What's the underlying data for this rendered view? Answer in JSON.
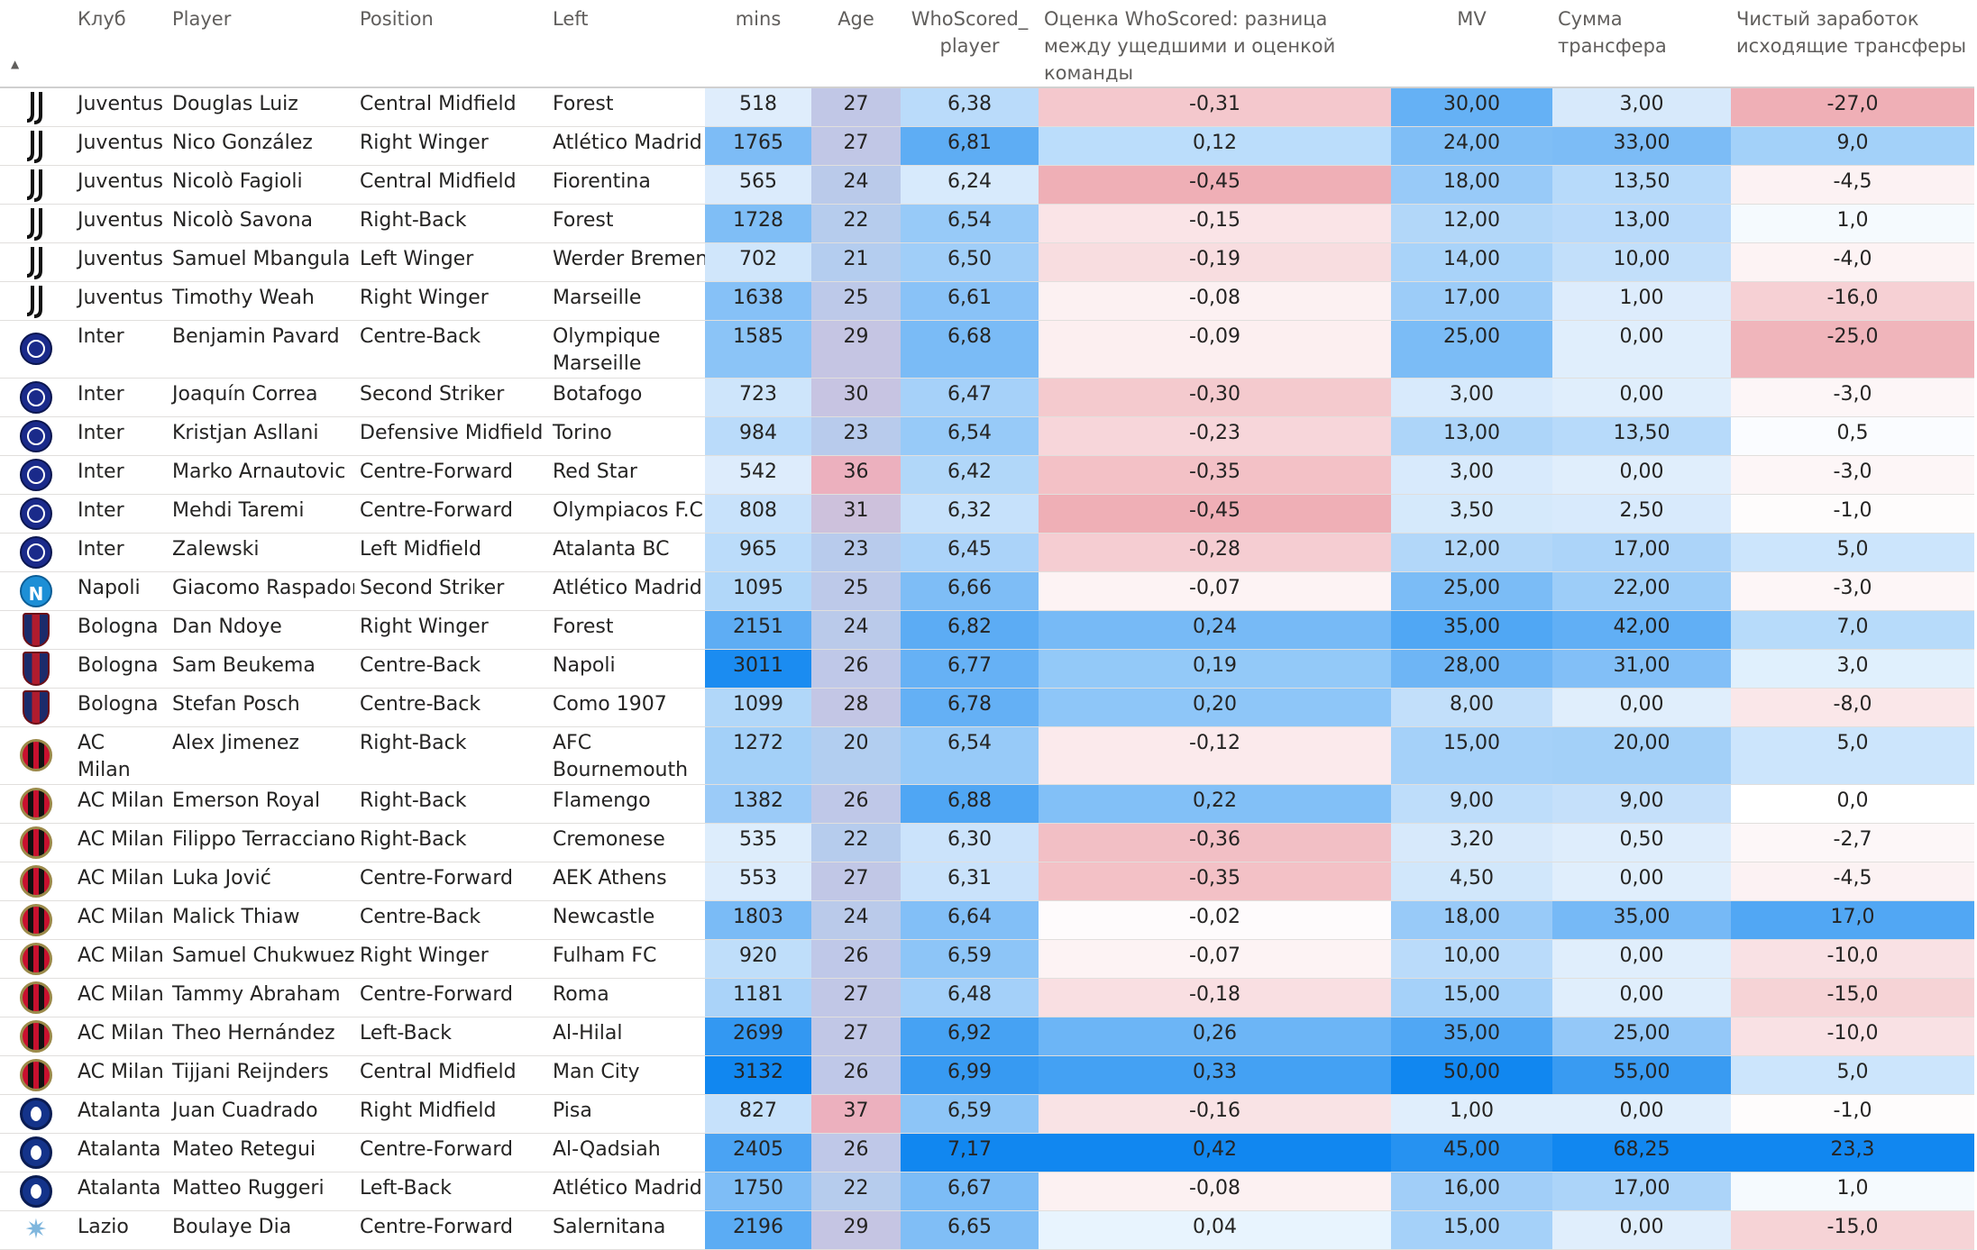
{
  "columns": {
    "logo": "",
    "club": "Клуб",
    "player": "Player",
    "position": "Position",
    "left": "Left",
    "mins": "mins",
    "age": "Age",
    "ws_player": "WhoScored_ player",
    "ws_diff": "Оценка WhoScored: разница между ущедшими и оценкой команды",
    "mv": "MV",
    "fee": "Сумма трансфера",
    "net": "Чистый заработок исходящие трансферы"
  },
  "sort_indicator": "▲",
  "rows": [
    {
      "logo": "juventus-logo",
      "club": "Juventus",
      "player": "Douglas Luiz",
      "position": "Central Midfield",
      "left": "Forest",
      "mins": "518",
      "age": "27",
      "ws": "6,38",
      "diff": "-0,31",
      "mv": "30,00",
      "fee": "3,00",
      "net": "-27,0"
    },
    {
      "logo": "juventus-logo",
      "club": "Juventus",
      "player": "Nico González",
      "position": "Right Winger",
      "left": "Atlético Madrid",
      "mins": "1765",
      "age": "27",
      "ws": "6,81",
      "diff": "0,12",
      "mv": "24,00",
      "fee": "33,00",
      "net": "9,0"
    },
    {
      "logo": "juventus-logo",
      "club": "Juventus",
      "player": "Nicolò Fagioli",
      "position": "Central Midfield",
      "left": "Fiorentina",
      "mins": "565",
      "age": "24",
      "ws": "6,24",
      "diff": "-0,45",
      "mv": "18,00",
      "fee": "13,50",
      "net": "-4,5"
    },
    {
      "logo": "juventus-logo",
      "club": "Juventus",
      "player": "Nicolò Savona",
      "position": "Right-Back",
      "left": "Forest",
      "mins": "1728",
      "age": "22",
      "ws": "6,54",
      "diff": "-0,15",
      "mv": "12,00",
      "fee": "13,00",
      "net": "1,0"
    },
    {
      "logo": "juventus-logo",
      "club": "Juventus",
      "player": "Samuel Mbangula",
      "position": "Left Winger",
      "left": "Werder Bremen",
      "mins": "702",
      "age": "21",
      "ws": "6,50",
      "diff": "-0,19",
      "mv": "14,00",
      "fee": "10,00",
      "net": "-4,0"
    },
    {
      "logo": "juventus-logo",
      "club": "Juventus",
      "player": "Timothy Weah",
      "position": "Right Winger",
      "left": "Marseille",
      "mins": "1638",
      "age": "25",
      "ws": "6,61",
      "diff": "-0,08",
      "mv": "17,00",
      "fee": "1,00",
      "net": "-16,0"
    },
    {
      "logo": "inter-logo",
      "club": "Inter",
      "player": "Benjamin Pavard",
      "position": "Centre-Back",
      "left": "Olympique Marseille",
      "mins": "1585",
      "age": "29",
      "ws": "6,68",
      "diff": "-0,09",
      "mv": "25,00",
      "fee": "0,00",
      "net": "-25,0",
      "tall": true
    },
    {
      "logo": "inter-logo",
      "club": "Inter",
      "player": "Joaquín Correa",
      "position": "Second Striker",
      "left": "Botafogo",
      "mins": "723",
      "age": "30",
      "ws": "6,47",
      "diff": "-0,30",
      "mv": "3,00",
      "fee": "0,00",
      "net": "-3,0"
    },
    {
      "logo": "inter-logo",
      "club": "Inter",
      "player": "Kristjan Asllani",
      "position": "Defensive Midfield",
      "left": "Torino",
      "mins": "984",
      "age": "23",
      "ws": "6,54",
      "diff": "-0,23",
      "mv": "13,00",
      "fee": "13,50",
      "net": "0,5"
    },
    {
      "logo": "inter-logo",
      "club": "Inter",
      "player": "Marko Arnautovic",
      "position": "Centre-Forward",
      "left": "Red Star",
      "mins": "542",
      "age": "36",
      "ws": "6,42",
      "diff": "-0,35",
      "mv": "3,00",
      "fee": "0,00",
      "net": "-3,0"
    },
    {
      "logo": "inter-logo",
      "club": "Inter",
      "player": "Mehdi Taremi",
      "position": "Centre-Forward",
      "left": "Olympiacos F.C.",
      "mins": "808",
      "age": "31",
      "ws": "6,32",
      "diff": "-0,45",
      "mv": "3,50",
      "fee": "2,50",
      "net": "-1,0"
    },
    {
      "logo": "inter-logo",
      "club": "Inter",
      "player": "Zalewski",
      "position": "Left Midfield",
      "left": "Atalanta BC",
      "mins": "965",
      "age": "23",
      "ws": "6,45",
      "diff": "-0,28",
      "mv": "12,00",
      "fee": "17,00",
      "net": "5,0"
    },
    {
      "logo": "napoli-logo",
      "club": "Napoli",
      "player": "Giacomo Raspadori",
      "position": "Second Striker",
      "left": "Atlético Madrid",
      "mins": "1095",
      "age": "25",
      "ws": "6,66",
      "diff": "-0,07",
      "mv": "25,00",
      "fee": "22,00",
      "net": "-3,0"
    },
    {
      "logo": "bologna-logo",
      "club": "Bologna",
      "player": "Dan Ndoye",
      "position": "Right Winger",
      "left": "Forest",
      "mins": "2151",
      "age": "24",
      "ws": "6,82",
      "diff": "0,24",
      "mv": "35,00",
      "fee": "42,00",
      "net": "7,0"
    },
    {
      "logo": "bologna-logo",
      "club": "Bologna",
      "player": "Sam Beukema",
      "position": "Centre-Back",
      "left": "Napoli",
      "mins": "3011",
      "age": "26",
      "ws": "6,77",
      "diff": "0,19",
      "mv": "28,00",
      "fee": "31,00",
      "net": "3,0"
    },
    {
      "logo": "bologna-logo",
      "club": "Bologna",
      "player": "Stefan Posch",
      "position": "Centre-Back",
      "left": "Como 1907",
      "mins": "1099",
      "age": "28",
      "ws": "6,78",
      "diff": "0,20",
      "mv": "8,00",
      "fee": "0,00",
      "net": "-8,0"
    },
    {
      "logo": "milan-logo",
      "club": "AC Milan",
      "player": "Alex Jimenez",
      "position": "Right-Back",
      "left": "AFC Bournemouth",
      "mins": "1272",
      "age": "20",
      "ws": "6,54",
      "diff": "-0,12",
      "mv": "15,00",
      "fee": "20,00",
      "net": "5,0",
      "tall": true
    },
    {
      "logo": "milan-logo",
      "club": "AC Milan",
      "player": "Emerson Royal",
      "position": "Right-Back",
      "left": "Flamengo",
      "mins": "1382",
      "age": "26",
      "ws": "6,88",
      "diff": "0,22",
      "mv": "9,00",
      "fee": "9,00",
      "net": "0,0"
    },
    {
      "logo": "milan-logo",
      "club": "AC Milan",
      "player": "Filippo Terracciano",
      "position": "Right-Back",
      "left": "Cremonese",
      "mins": "535",
      "age": "22",
      "ws": "6,30",
      "diff": "-0,36",
      "mv": "3,20",
      "fee": "0,50",
      "net": "-2,7"
    },
    {
      "logo": "milan-logo",
      "club": "AC Milan",
      "player": "Luka Jović",
      "position": "Centre-Forward",
      "left": "AEK Athens",
      "mins": "553",
      "age": "27",
      "ws": "6,31",
      "diff": "-0,35",
      "mv": "4,50",
      "fee": "0,00",
      "net": "-4,5"
    },
    {
      "logo": "milan-logo",
      "club": "AC Milan",
      "player": "Malick Thiaw",
      "position": "Centre-Back",
      "left": "Newcastle",
      "mins": "1803",
      "age": "24",
      "ws": "6,64",
      "diff": "-0,02",
      "mv": "18,00",
      "fee": "35,00",
      "net": "17,0"
    },
    {
      "logo": "milan-logo",
      "club": "AC Milan",
      "player": "Samuel Chukwueze",
      "position": "Right Winger",
      "left": "Fulham FC",
      "mins": "920",
      "age": "26",
      "ws": "6,59",
      "diff": "-0,07",
      "mv": "10,00",
      "fee": "0,00",
      "net": "-10,0"
    },
    {
      "logo": "milan-logo",
      "club": "AC Milan",
      "player": "Tammy Abraham",
      "position": "Centre-Forward",
      "left": "Roma",
      "mins": "1181",
      "age": "27",
      "ws": "6,48",
      "diff": "-0,18",
      "mv": "15,00",
      "fee": "0,00",
      "net": "-15,0"
    },
    {
      "logo": "milan-logo",
      "club": "AC Milan",
      "player": "Theo Hernández",
      "position": "Left-Back",
      "left": "Al-Hilal",
      "mins": "2699",
      "age": "27",
      "ws": "6,92",
      "diff": "0,26",
      "mv": "35,00",
      "fee": "25,00",
      "net": "-10,0"
    },
    {
      "logo": "milan-logo",
      "club": "AC Milan",
      "player": "Tijjani Reijnders",
      "position": "Central Midfield",
      "left": "Man City",
      "mins": "3132",
      "age": "26",
      "ws": "6,99",
      "diff": "0,33",
      "mv": "50,00",
      "fee": "55,00",
      "net": "5,0"
    },
    {
      "logo": "atalanta-logo",
      "club": "Atalanta",
      "player": "Juan Cuadrado",
      "position": "Right Midfield",
      "left": "Pisa",
      "mins": "827",
      "age": "37",
      "ws": "6,59",
      "diff": "-0,16",
      "mv": "1,00",
      "fee": "0,00",
      "net": "-1,0"
    },
    {
      "logo": "atalanta-logo",
      "club": "Atalanta",
      "player": "Mateo Retegui",
      "position": "Centre-Forward",
      "left": "Al-Qadsiah",
      "mins": "2405",
      "age": "26",
      "ws": "7,17",
      "diff": "0,42",
      "mv": "45,00",
      "fee": "68,25",
      "net": "23,3"
    },
    {
      "logo": "atalanta-logo",
      "club": "Atalanta",
      "player": "Matteo Ruggeri",
      "position": "Left-Back",
      "left": "Atlético Madrid",
      "mins": "1750",
      "age": "22",
      "ws": "6,67",
      "diff": "-0,08",
      "mv": "16,00",
      "fee": "17,00",
      "net": "1,0"
    },
    {
      "logo": "lazio-logo",
      "club": "Lazio",
      "player": "Boulaye Dia",
      "position": "Centre-Forward",
      "left": "Salernitana",
      "mins": "2196",
      "age": "29",
      "ws": "6,65",
      "diff": "0,04",
      "mv": "15,00",
      "fee": "0,00",
      "net": "-15,0"
    }
  ]
}
